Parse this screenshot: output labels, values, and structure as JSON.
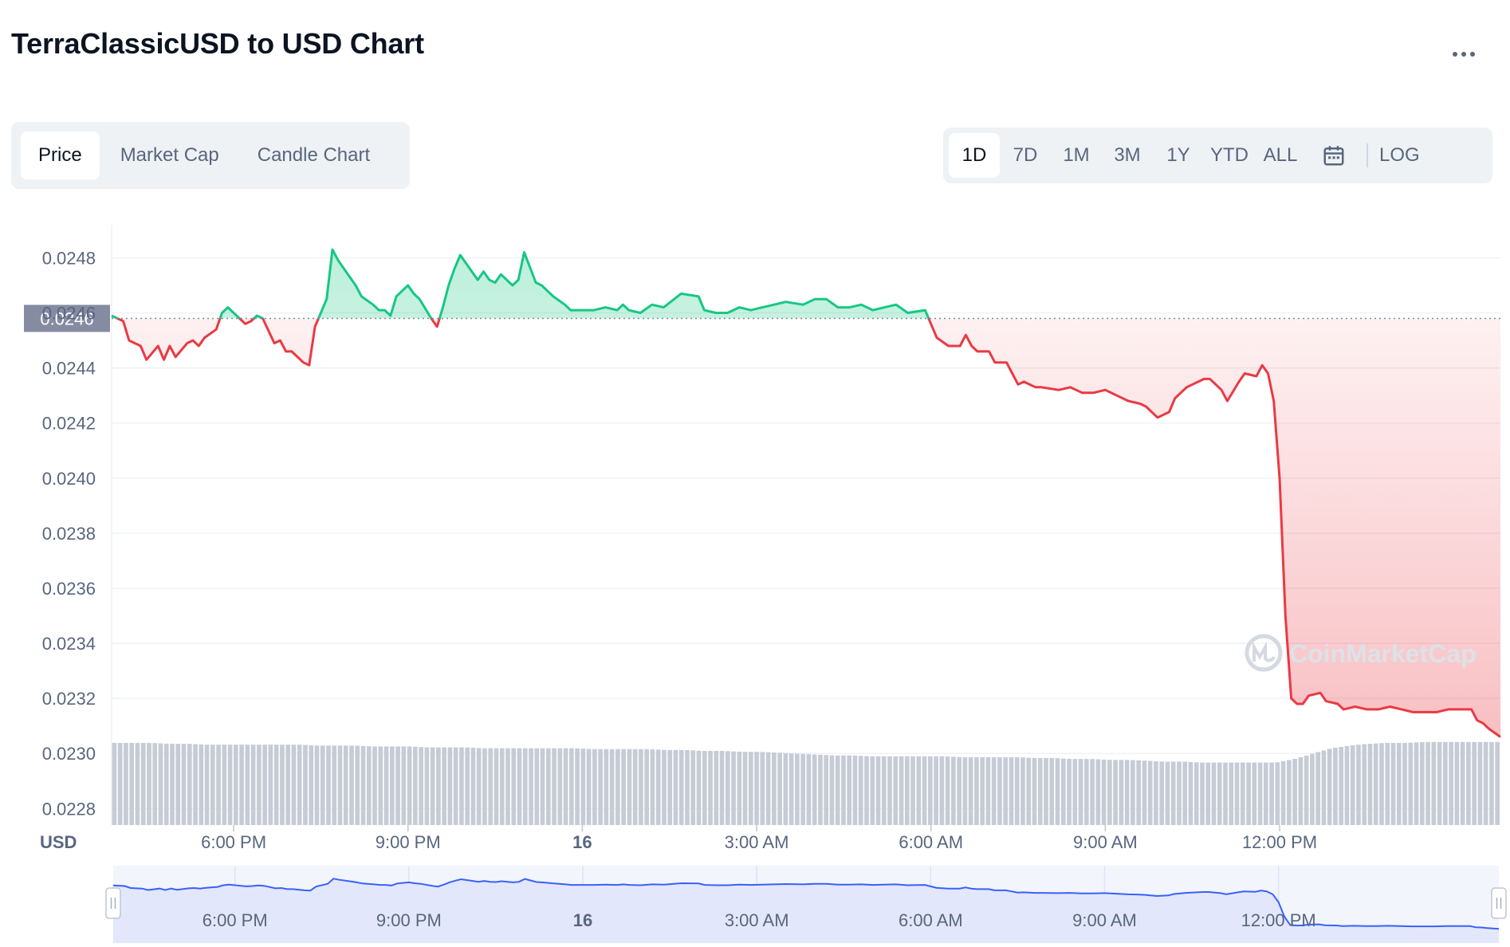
{
  "header": {
    "title": "TerraClassicUSD to USD Chart",
    "more_icon": "more-horizontal-icon"
  },
  "tabs": [
    {
      "label": "Price",
      "active": true
    },
    {
      "label": "Market Cap",
      "active": false
    },
    {
      "label": "Candle Chart",
      "active": false
    }
  ],
  "ranges": [
    {
      "label": "1D",
      "active": true
    },
    {
      "label": "7D",
      "active": false
    },
    {
      "label": "1M",
      "active": false
    },
    {
      "label": "3M",
      "active": false
    },
    {
      "label": "1Y",
      "active": false
    },
    {
      "label": "YTD",
      "active": false
    },
    {
      "label": "ALL",
      "active": false
    }
  ],
  "calendar_icon": "calendar-icon",
  "log_label": "LOG",
  "watermark": "CoinMarketCap",
  "colors": {
    "up": "#16c784",
    "down": "#ea3943",
    "volume": "#c6cbd6",
    "navigator_line": "#3861fb",
    "navigator_fill": "#e3e7fb",
    "grid": "#eff2f5",
    "axis_text": "#58667e"
  },
  "chart_data": {
    "type": "line",
    "currency_label": "USD",
    "reference_price": 0.02458,
    "reference_label": "0.0246",
    "y_ticks": [
      "0.0248",
      "0.0246",
      "0.0244",
      "0.0242",
      "0.0240",
      "0.0238",
      "0.0236",
      "0.0234",
      "0.0232",
      "0.0230",
      "0.0228"
    ],
    "ylim": [
      0.02274,
      0.02492
    ],
    "x_ticks": [
      {
        "t": 18,
        "label": "6:00 PM",
        "bold": false
      },
      {
        "t": 21,
        "label": "9:00 PM",
        "bold": false
      },
      {
        "t": 24,
        "label": "16",
        "bold": true
      },
      {
        "t": 27,
        "label": "3:00 AM",
        "bold": false
      },
      {
        "t": 30,
        "label": "6:00 AM",
        "bold": false
      },
      {
        "t": 33,
        "label": "9:00 AM",
        "bold": false
      },
      {
        "t": 36,
        "label": "12:00 PM",
        "bold": false
      }
    ],
    "xlim": [
      15.9,
      39.8
    ],
    "series": [
      {
        "x": [
          15.9,
          16.1,
          16.2,
          16.4,
          16.5,
          16.7,
          16.8,
          16.9,
          17.0,
          17.2,
          17.3,
          17.4,
          17.5,
          17.7,
          17.8,
          17.9,
          18.1,
          18.2,
          18.3,
          18.4,
          18.5,
          18.7,
          18.8,
          18.9,
          19.0,
          19.2,
          19.3,
          19.4,
          19.6,
          19.7,
          19.8,
          20.0,
          20.1,
          20.2,
          20.4,
          20.5,
          20.6,
          20.7,
          20.8,
          21.0,
          21.1,
          21.2,
          21.4,
          21.5,
          21.6,
          21.7,
          21.8,
          21.9,
          22.1,
          22.2,
          22.3,
          22.4,
          22.5,
          22.6,
          22.7,
          22.8,
          22.9,
          23.0,
          23.2,
          23.3,
          23.5,
          23.7,
          23.8,
          24.0,
          24.1,
          24.2,
          24.4,
          24.6,
          24.7,
          24.8,
          25.0,
          25.2,
          25.4,
          25.7,
          26.0,
          26.1,
          26.3,
          26.5,
          26.7,
          26.9,
          27.1,
          27.3,
          27.5,
          27.8,
          28.0,
          28.2,
          28.4,
          28.6,
          28.8,
          29.0,
          29.2,
          29.4,
          29.6,
          29.9,
          30.1,
          30.3,
          30.5,
          30.6,
          30.7,
          30.8,
          31.0,
          31.1,
          31.3,
          31.4,
          31.5,
          31.6,
          31.8,
          31.9,
          32.2,
          32.4,
          32.6,
          32.8,
          33.0,
          33.2,
          33.4,
          33.6,
          33.7,
          33.9,
          34.1,
          34.2,
          34.4,
          34.5,
          34.7,
          34.8,
          35.0,
          35.1,
          35.3,
          35.4,
          35.6,
          35.7,
          35.8,
          35.9,
          36.0,
          36.1,
          36.2,
          36.3,
          36.4,
          36.5,
          36.7,
          36.8,
          37.0,
          37.1,
          37.3,
          37.5,
          37.7,
          37.9,
          38.1,
          38.3,
          38.5,
          38.7,
          38.9,
          39.1,
          39.3,
          39.4,
          39.5,
          39.6,
          39.8
        ],
        "y": [
          0.02459,
          0.02457,
          0.0245,
          0.02448,
          0.02443,
          0.02448,
          0.02443,
          0.02448,
          0.02444,
          0.02449,
          0.0245,
          0.02448,
          0.02451,
          0.02454,
          0.0246,
          0.02462,
          0.02458,
          0.02456,
          0.02457,
          0.02459,
          0.02458,
          0.02449,
          0.0245,
          0.02446,
          0.02446,
          0.02442,
          0.02441,
          0.02455,
          0.02465,
          0.02483,
          0.02479,
          0.02473,
          0.0247,
          0.02466,
          0.02463,
          0.02461,
          0.02461,
          0.02459,
          0.02466,
          0.0247,
          0.02467,
          0.02465,
          0.02458,
          0.02455,
          0.02462,
          0.0247,
          0.02476,
          0.02481,
          0.02475,
          0.02472,
          0.02475,
          0.02472,
          0.02471,
          0.02474,
          0.02472,
          0.0247,
          0.02472,
          0.02482,
          0.02471,
          0.0247,
          0.02466,
          0.02463,
          0.02461,
          0.02461,
          0.02461,
          0.02461,
          0.02462,
          0.02461,
          0.02463,
          0.02461,
          0.0246,
          0.02463,
          0.02462,
          0.02467,
          0.02466,
          0.02461,
          0.0246,
          0.0246,
          0.02462,
          0.02461,
          0.02462,
          0.02463,
          0.02464,
          0.02463,
          0.02465,
          0.02465,
          0.02462,
          0.02462,
          0.02463,
          0.02461,
          0.02462,
          0.02463,
          0.0246,
          0.02461,
          0.02451,
          0.02448,
          0.02448,
          0.02452,
          0.02448,
          0.02446,
          0.02446,
          0.02442,
          0.02442,
          0.02438,
          0.02434,
          0.02435,
          0.02433,
          0.02433,
          0.02432,
          0.02433,
          0.02431,
          0.02431,
          0.02432,
          0.0243,
          0.02428,
          0.02427,
          0.02426,
          0.02422,
          0.02424,
          0.02429,
          0.02433,
          0.02434,
          0.02436,
          0.02436,
          0.02432,
          0.02428,
          0.02435,
          0.02438,
          0.02437,
          0.02441,
          0.02438,
          0.02428,
          0.024,
          0.0235,
          0.0232,
          0.02318,
          0.02318,
          0.02321,
          0.02322,
          0.02319,
          0.02318,
          0.02316,
          0.02317,
          0.02316,
          0.02316,
          0.02317,
          0.02316,
          0.02315,
          0.02315,
          0.02315,
          0.02316,
          0.02316,
          0.02316,
          0.02312,
          0.02311,
          0.02309,
          0.02306
        ]
      }
    ],
    "volume_fraction": [
      0.92,
      0.92,
      0.92,
      0.91,
      0.91,
      0.9,
      0.9,
      0.9,
      0.9,
      0.9,
      0.9,
      0.89,
      0.89,
      0.89,
      0.88,
      0.88,
      0.88,
      0.87,
      0.87,
      0.87,
      0.86,
      0.86,
      0.86,
      0.86,
      0.86,
      0.86,
      0.85,
      0.85,
      0.85,
      0.85,
      0.84,
      0.84,
      0.83,
      0.83,
      0.82,
      0.82,
      0.81,
      0.8,
      0.79,
      0.78,
      0.78,
      0.77,
      0.77,
      0.77,
      0.77,
      0.77,
      0.76,
      0.76,
      0.76,
      0.76,
      0.75,
      0.75,
      0.74,
      0.74,
      0.73,
      0.73,
      0.72,
      0.71,
      0.71,
      0.7,
      0.7,
      0.7,
      0.7,
      0.7,
      0.74,
      0.8,
      0.86,
      0.89,
      0.91,
      0.92,
      0.92,
      0.93,
      0.93,
      0.93,
      0.93,
      0.93
    ],
    "navigator": {
      "x_ticks": [
        {
          "t": 18,
          "label": "6:00 PM",
          "bold": false
        },
        {
          "t": 21,
          "label": "9:00 PM",
          "bold": false
        },
        {
          "t": 24,
          "label": "16",
          "bold": true
        },
        {
          "t": 27,
          "label": "3:00 AM",
          "bold": false
        },
        {
          "t": 30,
          "label": "6:00 AM",
          "bold": false
        },
        {
          "t": 33,
          "label": "9:00 AM",
          "bold": false
        },
        {
          "t": 36,
          "label": "12:00 PM",
          "bold": false
        }
      ]
    }
  }
}
